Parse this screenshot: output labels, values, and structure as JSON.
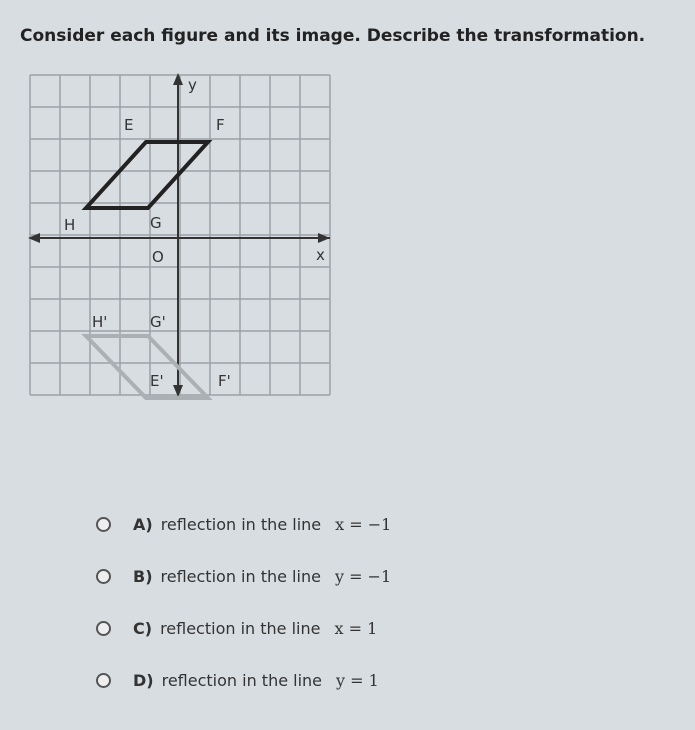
{
  "question": "Consider each figure and its image. Describe the transformation.",
  "graph": {
    "y_axis": "y",
    "x_axis": "x",
    "origin": "O",
    "figure": {
      "E": "E",
      "F": "F",
      "G": "G",
      "H": "H"
    },
    "image": {
      "E": "E'",
      "F": "F'",
      "G": "G'",
      "H": "H'"
    }
  },
  "options": [
    {
      "letter": "A)",
      "text": "reflection in the line",
      "equation": "x = −1"
    },
    {
      "letter": "B)",
      "text": "reflection in the line",
      "equation": "y = −1"
    },
    {
      "letter": "C)",
      "text": "reflection in the line",
      "equation": "x = 1"
    },
    {
      "letter": "D)",
      "text": "reflection in the line",
      "equation": "y = 1"
    }
  ]
}
